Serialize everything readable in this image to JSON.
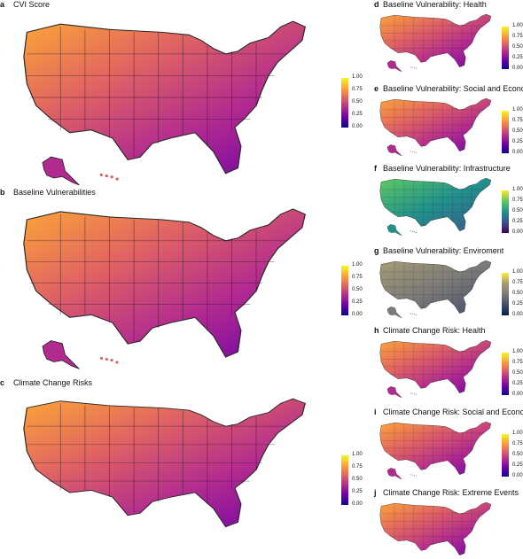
{
  "main_panels": [
    {
      "letter": "a",
      "title": "CVI Score",
      "gradient": "plasma"
    },
    {
      "letter": "b",
      "title": "Baseline Vulnerabilities",
      "gradient": "plasma"
    },
    {
      "letter": "c",
      "title": "Climate Change Risks",
      "gradient": "plasma"
    }
  ],
  "side_panels": [
    {
      "letter": "d",
      "title": "Baseline Vulnerability: Health",
      "gradient": "plasma"
    },
    {
      "letter": "e",
      "title": "Baseline Vulnerability: Social and Economic",
      "gradient": "plasma"
    },
    {
      "letter": "f",
      "title": "Baseline Vulnerability: Infrastructure",
      "gradient": "viridis"
    },
    {
      "letter": "g",
      "title": "Baseline Vulnerability: Enviroment",
      "gradient": "cividis"
    },
    {
      "letter": "h",
      "title": "Climate Change Risk: Health",
      "gradient": "plasma"
    },
    {
      "letter": "i",
      "title": "Climate Change Risk: Social and Economic",
      "gradient": "plasma"
    },
    {
      "letter": "j",
      "title": "Climate Change Risk: Extreme Events",
      "gradient": "plasma"
    }
  ],
  "legend_ticks": [
    "1.00",
    "0.75",
    "0.50",
    "0.25",
    "0.00"
  ],
  "colors": {
    "plasma": [
      "#f0f921",
      "#fca636",
      "#e16462",
      "#b12a90",
      "#6a00a8",
      "#0d0887"
    ],
    "viridis": [
      "#fde725",
      "#5ec962",
      "#21918c",
      "#3b528b",
      "#440154"
    ],
    "cividis": [
      "#fee838",
      "#a59c74",
      "#7c7b78",
      "#414d6b",
      "#00224e"
    ]
  }
}
